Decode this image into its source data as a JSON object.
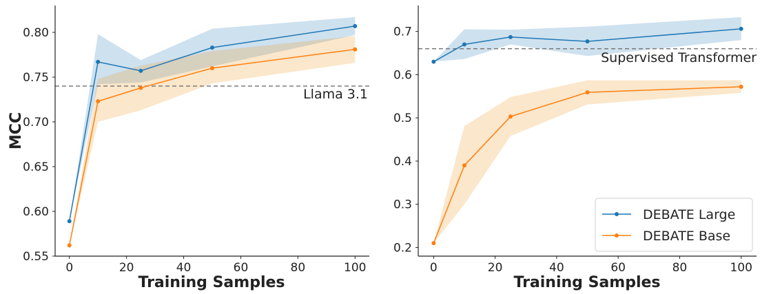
{
  "chart_data": [
    {
      "type": "line",
      "xlabel": "Training Samples",
      "ylabel": "MCC",
      "xlim": [
        -5,
        105
      ],
      "ylim": [
        0.55,
        0.83
      ],
      "xticks": [
        0,
        20,
        40,
        60,
        80,
        100
      ],
      "yticks": [
        0.55,
        0.6,
        0.65,
        0.7,
        0.75,
        0.8
      ],
      "ytick_decimals": 2,
      "grid": false,
      "reference_line": {
        "y": 0.74,
        "label": "Llama 3.1",
        "style": "dashed"
      },
      "series": [
        {
          "name": "DEBATE Large",
          "color": "#1f77b4",
          "x": [
            0,
            10,
            25,
            50,
            100
          ],
          "y": [
            0.589,
            0.767,
            0.757,
            0.783,
            0.807
          ],
          "lower": [
            0.589,
            0.742,
            0.744,
            0.762,
            0.797
          ],
          "upper": [
            0.589,
            0.798,
            0.769,
            0.804,
            0.817
          ]
        },
        {
          "name": "DEBATE Base",
          "color": "#ff7f0e",
          "x": [
            0,
            10,
            25,
            50,
            100
          ],
          "y": [
            0.562,
            0.723,
            0.738,
            0.76,
            0.781
          ],
          "lower": [
            0.562,
            0.7,
            0.713,
            0.743,
            0.766
          ],
          "upper": [
            0.562,
            0.748,
            0.763,
            0.779,
            0.796
          ]
        }
      ]
    },
    {
      "type": "line",
      "xlabel": "Training Samples",
      "ylabel": "",
      "xlim": [
        -5,
        105
      ],
      "ylim": [
        0.18,
        0.76
      ],
      "xticks": [
        0,
        20,
        40,
        60,
        80,
        100
      ],
      "yticks": [
        0.2,
        0.3,
        0.4,
        0.5,
        0.6,
        0.7
      ],
      "ytick_decimals": 1,
      "grid": false,
      "reference_line": {
        "y": 0.66,
        "label": "Supervised Transformer",
        "style": "dashed"
      },
      "legend": {
        "position": "bottom-right",
        "entries": [
          "DEBATE Large",
          "DEBATE Base"
        ]
      },
      "series": [
        {
          "name": "DEBATE Large",
          "color": "#1f77b4",
          "x": [
            0,
            10,
            25,
            50,
            100
          ],
          "y": [
            0.63,
            0.67,
            0.687,
            0.677,
            0.706
          ],
          "lower": [
            0.63,
            0.636,
            0.67,
            0.643,
            0.68
          ],
          "upper": [
            0.63,
            0.705,
            0.704,
            0.711,
            0.733
          ]
        },
        {
          "name": "DEBATE Base",
          "color": "#ff7f0e",
          "x": [
            0,
            10,
            25,
            50,
            100
          ],
          "y": [
            0.21,
            0.39,
            0.503,
            0.559,
            0.572
          ],
          "lower": [
            0.21,
            0.3,
            0.458,
            0.531,
            0.558
          ],
          "upper": [
            0.21,
            0.481,
            0.548,
            0.587,
            0.587
          ]
        }
      ]
    }
  ]
}
